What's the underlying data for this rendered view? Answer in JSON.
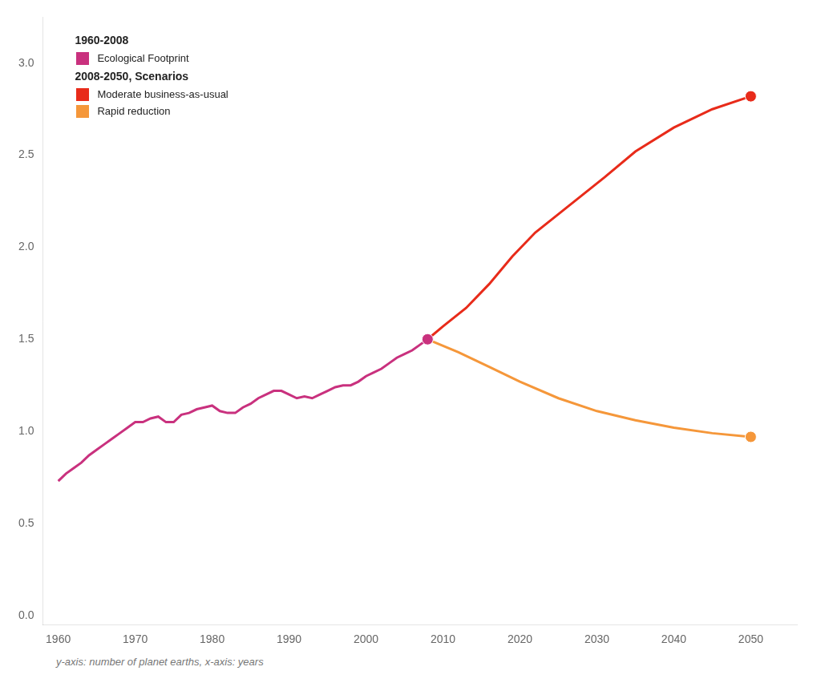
{
  "chart_data": {
    "type": "line",
    "note": "y-axis: number of planet earths, x-axis: years",
    "legend": "upper left",
    "grid": false,
    "xlim": [
      1958,
      2056
    ],
    "xticks": [
      1960,
      1970,
      1980,
      1990,
      2000,
      2010,
      2020,
      2030,
      2040,
      2050
    ],
    "ylim": [
      -0.05,
      3.25
    ],
    "yticks": [
      {
        "value": 0.0,
        "label": "0.0"
      },
      0.5,
      {
        "value": 1.0,
        "label": "1.0"
      },
      1.5,
      {
        "value": 2.0,
        "label": "2.0"
      },
      2.5,
      {
        "value": 3.0,
        "label": "3.0"
      }
    ],
    "series": [
      {
        "name": "Ecological Footprint",
        "group": "1960-2008",
        "color": "#c9317e",
        "x": [
          1960,
          1961,
          1962,
          1963,
          1964,
          1965,
          1966,
          1967,
          1968,
          1969,
          1970,
          1971,
          1972,
          1973,
          1974,
          1975,
          1976,
          1977,
          1978,
          1979,
          1980,
          1981,
          1982,
          1983,
          1984,
          1985,
          1986,
          1987,
          1988,
          1989,
          1990,
          1991,
          1992,
          1993,
          1994,
          1995,
          1996,
          1997,
          1998,
          1999,
          2000,
          2001,
          2002,
          2003,
          2004,
          2005,
          2006,
          2007,
          2008
        ],
        "values": [
          0.73,
          0.77,
          0.8,
          0.83,
          0.87,
          0.9,
          0.93,
          0.96,
          0.99,
          1.02,
          1.05,
          1.05,
          1.07,
          1.08,
          1.05,
          1.05,
          1.09,
          1.1,
          1.12,
          1.13,
          1.14,
          1.11,
          1.1,
          1.1,
          1.13,
          1.15,
          1.18,
          1.2,
          1.22,
          1.22,
          1.2,
          1.18,
          1.19,
          1.18,
          1.2,
          1.22,
          1.24,
          1.25,
          1.25,
          1.27,
          1.3,
          1.32,
          1.34,
          1.37,
          1.4,
          1.42,
          1.44,
          1.47,
          1.5
        ]
      },
      {
        "name": "Moderate business-as-usual",
        "group": "2008-2050, Scenarios",
        "color": "#e82b1a",
        "x": [
          2008,
          2010,
          2013,
          2016,
          2019,
          2022,
          2025,
          2028,
          2031,
          2035,
          2040,
          2045,
          2050
        ],
        "values": [
          1.5,
          1.57,
          1.67,
          1.8,
          1.95,
          2.08,
          2.18,
          2.28,
          2.38,
          2.52,
          2.65,
          2.75,
          2.82
        ]
      },
      {
        "name": "Rapid reduction",
        "group": "2008-2050, Scenarios",
        "color": "#f5973a",
        "x": [
          2008,
          2012,
          2016,
          2020,
          2025,
          2030,
          2035,
          2040,
          2045,
          2050
        ],
        "values": [
          1.5,
          1.43,
          1.35,
          1.27,
          1.18,
          1.11,
          1.06,
          1.02,
          0.99,
          0.97
        ]
      }
    ]
  }
}
